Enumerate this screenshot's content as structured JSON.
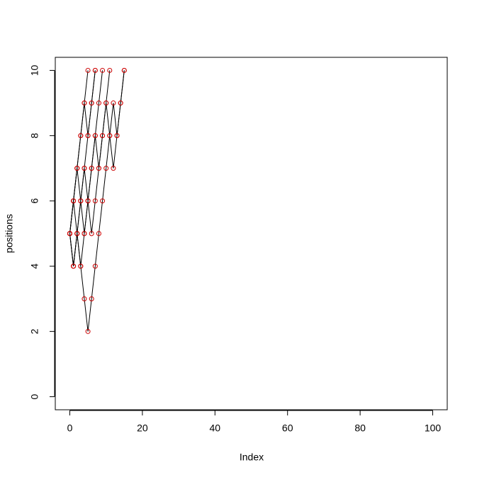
{
  "chart_data": {
    "type": "line",
    "x_label": "Index",
    "y_label": "positions",
    "line_color": "#000000",
    "point_color": "#cc0000",
    "xlim": [
      -4,
      104
    ],
    "xticks": [
      0,
      20,
      40,
      60,
      80,
      100
    ],
    "ylim": [
      -0.4,
      10.4
    ],
    "yticks": [
      0,
      2,
      4,
      6,
      8,
      10
    ],
    "series": [
      {
        "values": [
          5,
          6,
          7,
          8,
          9,
          10
        ]
      },
      {
        "values": [
          5,
          6,
          7,
          8,
          9,
          8,
          9,
          10
        ]
      },
      {
        "values": [
          5,
          4,
          5,
          6,
          7,
          8,
          9,
          10
        ]
      },
      {
        "values": [
          5,
          4,
          5,
          6,
          7,
          6,
          7,
          8,
          9,
          10
        ]
      },
      {
        "values": [
          5,
          6,
          5,
          4,
          5,
          6,
          5,
          6,
          7,
          8,
          9,
          10
        ]
      },
      {
        "values": [
          5,
          6,
          7,
          6,
          5,
          6,
          7,
          8,
          7,
          8,
          9,
          8,
          9,
          8,
          9,
          10
        ]
      },
      {
        "values": [
          5,
          4,
          5,
          4,
          3,
          2,
          3,
          4,
          5,
          6,
          7,
          8,
          7,
          8,
          9,
          10
        ]
      }
    ]
  }
}
